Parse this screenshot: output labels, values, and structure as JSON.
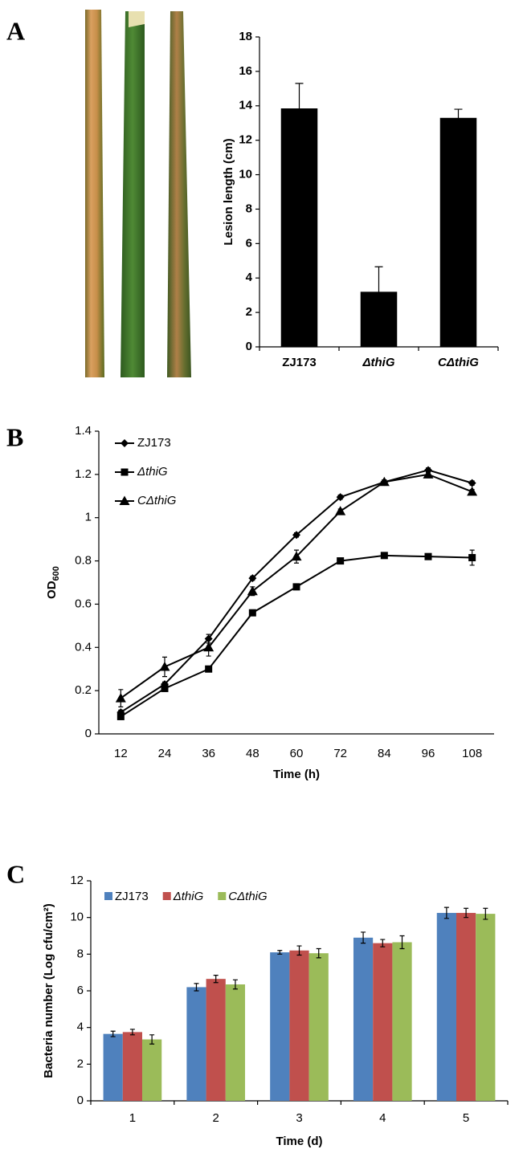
{
  "chart_data": [
    {
      "type": "bar",
      "panel": "A",
      "ylabel": "Lesion length (cm)",
      "categories": [
        "ZJ173",
        "ΔthiG",
        "CΔthiG"
      ],
      "category_italic": [
        false,
        true,
        true
      ],
      "values": [
        13.85,
        3.2,
        13.3
      ],
      "errors": [
        1.45,
        1.45,
        0.5
      ],
      "color": "#000000",
      "ylim": [
        0,
        18
      ],
      "yticks": [
        0,
        2,
        4,
        6,
        8,
        10,
        12,
        14,
        16,
        18
      ]
    },
    {
      "type": "line",
      "panel": "B",
      "ylabel": "OD",
      "ylabel_sub": "600",
      "xlabel": "Time (h)",
      "x": [
        12,
        24,
        36,
        48,
        60,
        72,
        84,
        96,
        108
      ],
      "xlim": [
        6,
        114
      ],
      "xticks": [
        12,
        24,
        36,
        48,
        60,
        72,
        84,
        96,
        108
      ],
      "ylim": [
        0,
        1.4
      ],
      "yticks": [
        0,
        0.2,
        0.4,
        0.6,
        0.8,
        1,
        1.2,
        1.4
      ],
      "series": [
        {
          "name": "ZJ173",
          "italic": false,
          "marker": "diamond",
          "color": "#000000",
          "values": [
            0.1,
            0.23,
            0.44,
            0.72,
            0.92,
            1.095,
            1.165,
            1.22,
            1.16
          ],
          "errors": [
            0.01,
            0.01,
            0.02,
            0.01,
            0.01,
            0.01,
            0.01,
            0.01,
            0.01
          ]
        },
        {
          "name": "ΔthiG",
          "italic": true,
          "marker": "square",
          "color": "#000000",
          "values": [
            0.08,
            0.21,
            0.3,
            0.56,
            0.68,
            0.8,
            0.825,
            0.82,
            0.815
          ],
          "errors": [
            0.01,
            0.01,
            0.01,
            0.01,
            0.01,
            0.01,
            0.01,
            0.01,
            0.035
          ]
        },
        {
          "name": "CΔthiG",
          "italic": true,
          "marker": "triangle",
          "color": "#000000",
          "values": [
            0.165,
            0.31,
            0.4,
            0.66,
            0.82,
            1.03,
            1.165,
            1.2,
            1.12
          ],
          "errors": [
            0.04,
            0.045,
            0.04,
            0.02,
            0.03,
            0.01,
            0.01,
            0.01,
            0.01
          ]
        }
      ]
    },
    {
      "type": "bar",
      "panel": "C",
      "ylabel": "Bacteria number (Log cfu/cm²)",
      "xlabel": "Time (d)",
      "categories": [
        "1",
        "2",
        "3",
        "4",
        "5"
      ],
      "ylim": [
        0,
        12
      ],
      "yticks": [
        0,
        2,
        4,
        6,
        8,
        10,
        12
      ],
      "series": [
        {
          "name": "ZJ173",
          "italic": false,
          "color": "#4f81bd",
          "values": [
            3.65,
            6.2,
            8.1,
            8.9,
            10.25
          ],
          "errors": [
            0.15,
            0.2,
            0.1,
            0.3,
            0.3
          ]
        },
        {
          "name": "ΔthiG",
          "italic": true,
          "color": "#c0504d",
          "values": [
            3.75,
            6.65,
            8.2,
            8.6,
            10.25
          ],
          "errors": [
            0.15,
            0.2,
            0.25,
            0.2,
            0.25
          ]
        },
        {
          "name": "CΔthiG",
          "italic": true,
          "color": "#9bbb59",
          "values": [
            3.35,
            6.35,
            8.05,
            8.65,
            10.2
          ],
          "errors": [
            0.25,
            0.25,
            0.25,
            0.35,
            0.3
          ]
        }
      ]
    }
  ]
}
